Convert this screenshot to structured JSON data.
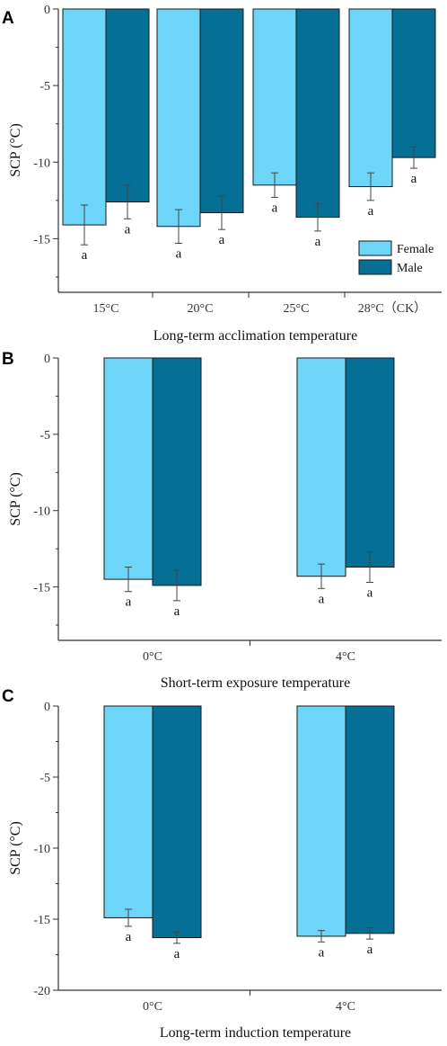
{
  "chart_data": [
    {
      "panel": "A",
      "type": "bar",
      "categories": [
        "15°C",
        "20°C",
        "25°C",
        "28°C（CK）"
      ],
      "series": [
        {
          "name": "Female",
          "values": [
            -14.1,
            -14.2,
            -11.5,
            -11.6
          ],
          "errors": [
            1.3,
            1.1,
            0.8,
            0.9
          ],
          "labels": [
            "a",
            "a",
            "a",
            "a"
          ]
        },
        {
          "name": "Male",
          "values": [
            -12.6,
            -13.3,
            -13.6,
            -9.7
          ],
          "errors": [
            1.1,
            1.1,
            0.9,
            0.7
          ],
          "labels": [
            "a",
            "a",
            "a",
            "a"
          ]
        }
      ],
      "xlabel": "Long-term acclimation temperature",
      "ylabel": "SCP (°C)",
      "ylim": [
        -18.5,
        0
      ],
      "yticks": [
        0,
        -5,
        -10,
        -15
      ],
      "legend": "bottom-right"
    },
    {
      "panel": "B",
      "type": "bar",
      "categories": [
        "0°C",
        "4°C"
      ],
      "series": [
        {
          "name": "Female",
          "values": [
            -14.5,
            -14.3
          ],
          "errors": [
            0.8,
            0.8
          ],
          "labels": [
            "a",
            "a"
          ]
        },
        {
          "name": "Male",
          "values": [
            -14.9,
            -13.7
          ],
          "errors": [
            1.0,
            1.0
          ],
          "labels": [
            "a",
            "a"
          ]
        }
      ],
      "xlabel": "Short-term exposure temperature",
      "ylabel": "SCP (°C)",
      "ylim": [
        -18.5,
        0
      ],
      "yticks": [
        0,
        -5,
        -10,
        -15
      ]
    },
    {
      "panel": "C",
      "type": "bar",
      "categories": [
        "0°C",
        "4°C"
      ],
      "series": [
        {
          "name": "Female",
          "values": [
            -14.9,
            -16.2
          ],
          "errors": [
            0.6,
            0.4
          ],
          "labels": [
            "a",
            "a"
          ]
        },
        {
          "name": "Male",
          "values": [
            -16.3,
            -16.0
          ],
          "errors": [
            0.4,
            0.4
          ],
          "labels": [
            "a",
            "a"
          ]
        }
      ],
      "xlabel": "Long-term induction temperature",
      "ylabel": "SCP (°C)",
      "ylim": [
        -20,
        0
      ],
      "yticks": [
        0,
        -5,
        -10,
        -15,
        -20
      ]
    }
  ],
  "colors": {
    "female": "#6dd5f7",
    "male": "#066f96",
    "axis": "#333333",
    "error_bar": "#444444"
  }
}
